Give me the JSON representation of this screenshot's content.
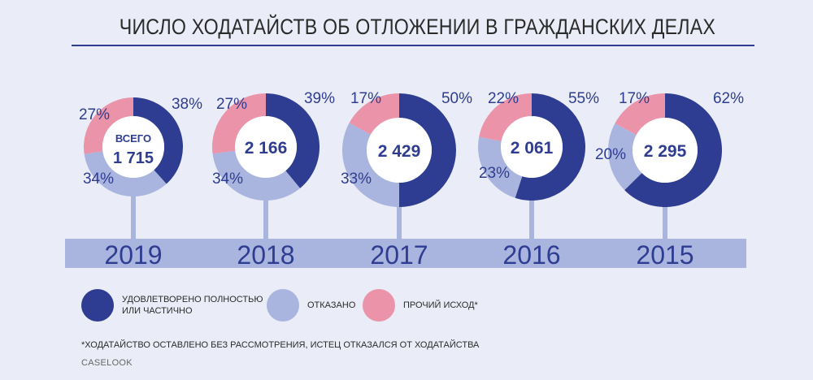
{
  "title": "ЧИСЛО ХОДАТАЙСТВ ОБ ОТЛОЖЕНИИ В ГРАЖДАНСКИХ ДЕЛАХ",
  "colors": {
    "satisfied": "#2e3d91",
    "refused": "#a9b5df",
    "other": "#ea93a9",
    "band": "#a9b5df",
    "background": "#eaedf7"
  },
  "chart_data": {
    "type": "pie",
    "variant": "donut",
    "categories": [
      "2019",
      "2018",
      "2017",
      "2016",
      "2015"
    ],
    "total_prefix": "ВСЕГО",
    "totals": [
      "1 715",
      "2 166",
      "2 429",
      "2 061",
      "2 295"
    ],
    "series": [
      {
        "name": "УДОВЛЕТВОРЕНО ПОЛНОСТЬЮ ИЛИ ЧАСТИЧНО",
        "key": "satisfied",
        "values": [
          38,
          39,
          50,
          55,
          62
        ],
        "labels": [
          "38%",
          "39%",
          "50%",
          "55%",
          "62%"
        ]
      },
      {
        "name": "ОТКАЗАНО",
        "key": "refused",
        "values": [
          34,
          34,
          33,
          23,
          20
        ],
        "labels": [
          "34%",
          "34%",
          "33%",
          "23%",
          "20%"
        ]
      },
      {
        "name": "ПРОЧИЙ ИСХОД*",
        "key": "other",
        "values": [
          27,
          27,
          17,
          22,
          17
        ],
        "labels": [
          "27%",
          "27%",
          "17%",
          "22%",
          "17%"
        ]
      }
    ]
  },
  "legend": [
    {
      "key": "satisfied",
      "label": "УДОВЛЕТВОРЕНО ПОЛНОСТЬЮ ИЛИ ЧАСТИЧНО"
    },
    {
      "key": "refused",
      "label": "ОТКАЗАНО"
    },
    {
      "key": "other",
      "label": "ПРОЧИЙ ИСХОД*"
    }
  ],
  "footnote": "*ХОДАТАЙСТВО ОСТАВЛЕНО БЕЗ РАССМОТРЕНИЯ, ИСТЕЦ ОТКАЗАЛСЯ ОТ ХОДАТАЙСТВА",
  "source": "CASELOOK"
}
